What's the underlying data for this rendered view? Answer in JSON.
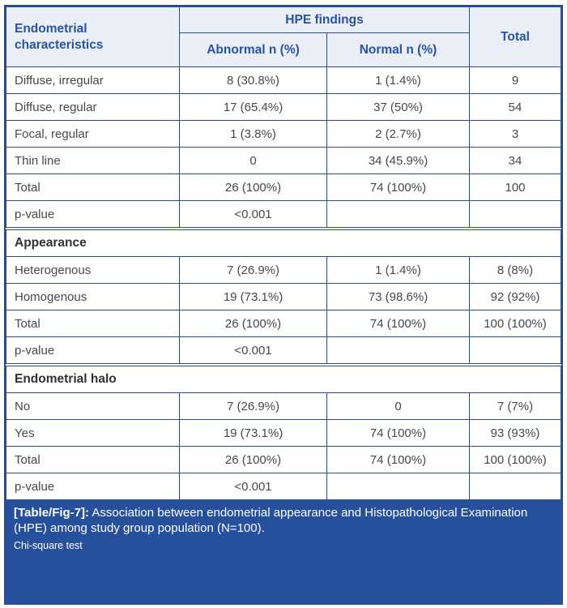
{
  "table": {
    "header": {
      "row_label": "Endometrial characteristics",
      "group_label": "HPE findings",
      "abnormal_label": "Abnormal n (%)",
      "normal_label": "Normal n (%)",
      "total_label": "Total"
    },
    "sections": [
      {
        "title": "",
        "rows": [
          [
            "Diffuse, irregular",
            "8 (30.8%)",
            "1 (1.4%)",
            "9"
          ],
          [
            "Diffuse, regular",
            "17 (65.4%)",
            "37 (50%)",
            "54"
          ],
          [
            "Focal, regular",
            "1 (3.8%)",
            "2 (2.7%)",
            "3"
          ],
          [
            "Thin line",
            "0",
            "34 (45.9%)",
            "34"
          ],
          [
            "Total",
            "26 (100%)",
            "74 (100%)",
            "100"
          ],
          [
            "p-value",
            "<0.001",
            "",
            ""
          ]
        ]
      },
      {
        "title": "Appearance",
        "rows": [
          [
            "Heterogenous",
            "7 (26.9%)",
            "1 (1.4%)",
            "8 (8%)"
          ],
          [
            "Homogenous",
            "19 (73.1%)",
            "73 (98.6%)",
            "92 (92%)"
          ],
          [
            "Total",
            "26 (100%)",
            "74 (100%)",
            "100 (100%)"
          ],
          [
            "p-value",
            "<0.001",
            "",
            ""
          ]
        ]
      },
      {
        "title": "Endometrial halo",
        "rows": [
          [
            "No",
            "7 (26.9%)",
            "0",
            "7 (7%)"
          ],
          [
            "Yes",
            "19 (73.1%)",
            "74 (100%)",
            "93 (93%)"
          ],
          [
            "Total",
            "26 (100%)",
            "74 (100%)",
            "100 (100%)"
          ],
          [
            "p-value",
            "<0.001",
            "",
            ""
          ]
        ]
      }
    ]
  },
  "caption": {
    "label": "[Table/Fig-7]:",
    "text": "Association between endometrial appearance and Histopathological Examination (HPE) among study group population (N=100).",
    "note": "Chi-square test"
  },
  "colors": {
    "border_blue": "#2b4b8f",
    "header_text_blue": "#2853a6",
    "header_bg": "#eaeef7",
    "caption_bg": "#27509c",
    "body_text": "#45484d",
    "caption_text": "#ffffff"
  }
}
